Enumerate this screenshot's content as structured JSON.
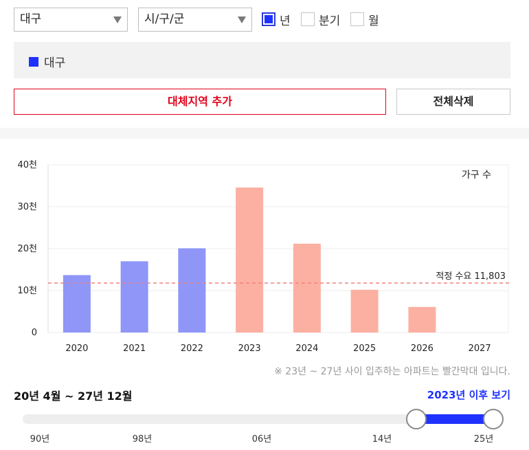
{
  "filters": {
    "region": "대구",
    "city": "시/구/군",
    "periods": [
      {
        "label": "년",
        "checked": true
      },
      {
        "label": "분기",
        "checked": false
      },
      {
        "label": "월",
        "checked": false
      }
    ]
  },
  "selected_regions": [
    {
      "label": "대구",
      "color": "#1f31ff"
    }
  ],
  "buttons": {
    "add": "대체지역 추가",
    "clear": "전체삭제"
  },
  "chart_data": {
    "type": "bar",
    "categories": [
      "2020",
      "2021",
      "2022",
      "2023",
      "2024",
      "2025",
      "2026",
      "2027"
    ],
    "values": [
      13700,
      17000,
      20100,
      34600,
      21200,
      10200,
      6100,
      0
    ],
    "value_unit_label": "가구 수",
    "y_ticks": [
      "0",
      "10천",
      "20천",
      "30천",
      "40천"
    ],
    "ylim": [
      0,
      40000
    ],
    "bar_colors": {
      "past": "#8f96f7",
      "future": "#fcb0a2"
    },
    "future_start_index": 3,
    "reference_line": {
      "label": "적정 수요 11,803",
      "value": 11803,
      "color": "#f08080"
    },
    "grid": true
  },
  "note": "※ 23년 ~ 27년 사이 입주하는 아파트는 빨간막대 입니다.",
  "range": {
    "label": "20년 4월 ~ 27년 12월",
    "after_link": "2023년 이후 보기",
    "start_fraction": 0.82,
    "end_fraction": 0.98,
    "ticks": [
      "90년",
      "98년",
      "06년",
      "14년",
      "25년"
    ]
  }
}
